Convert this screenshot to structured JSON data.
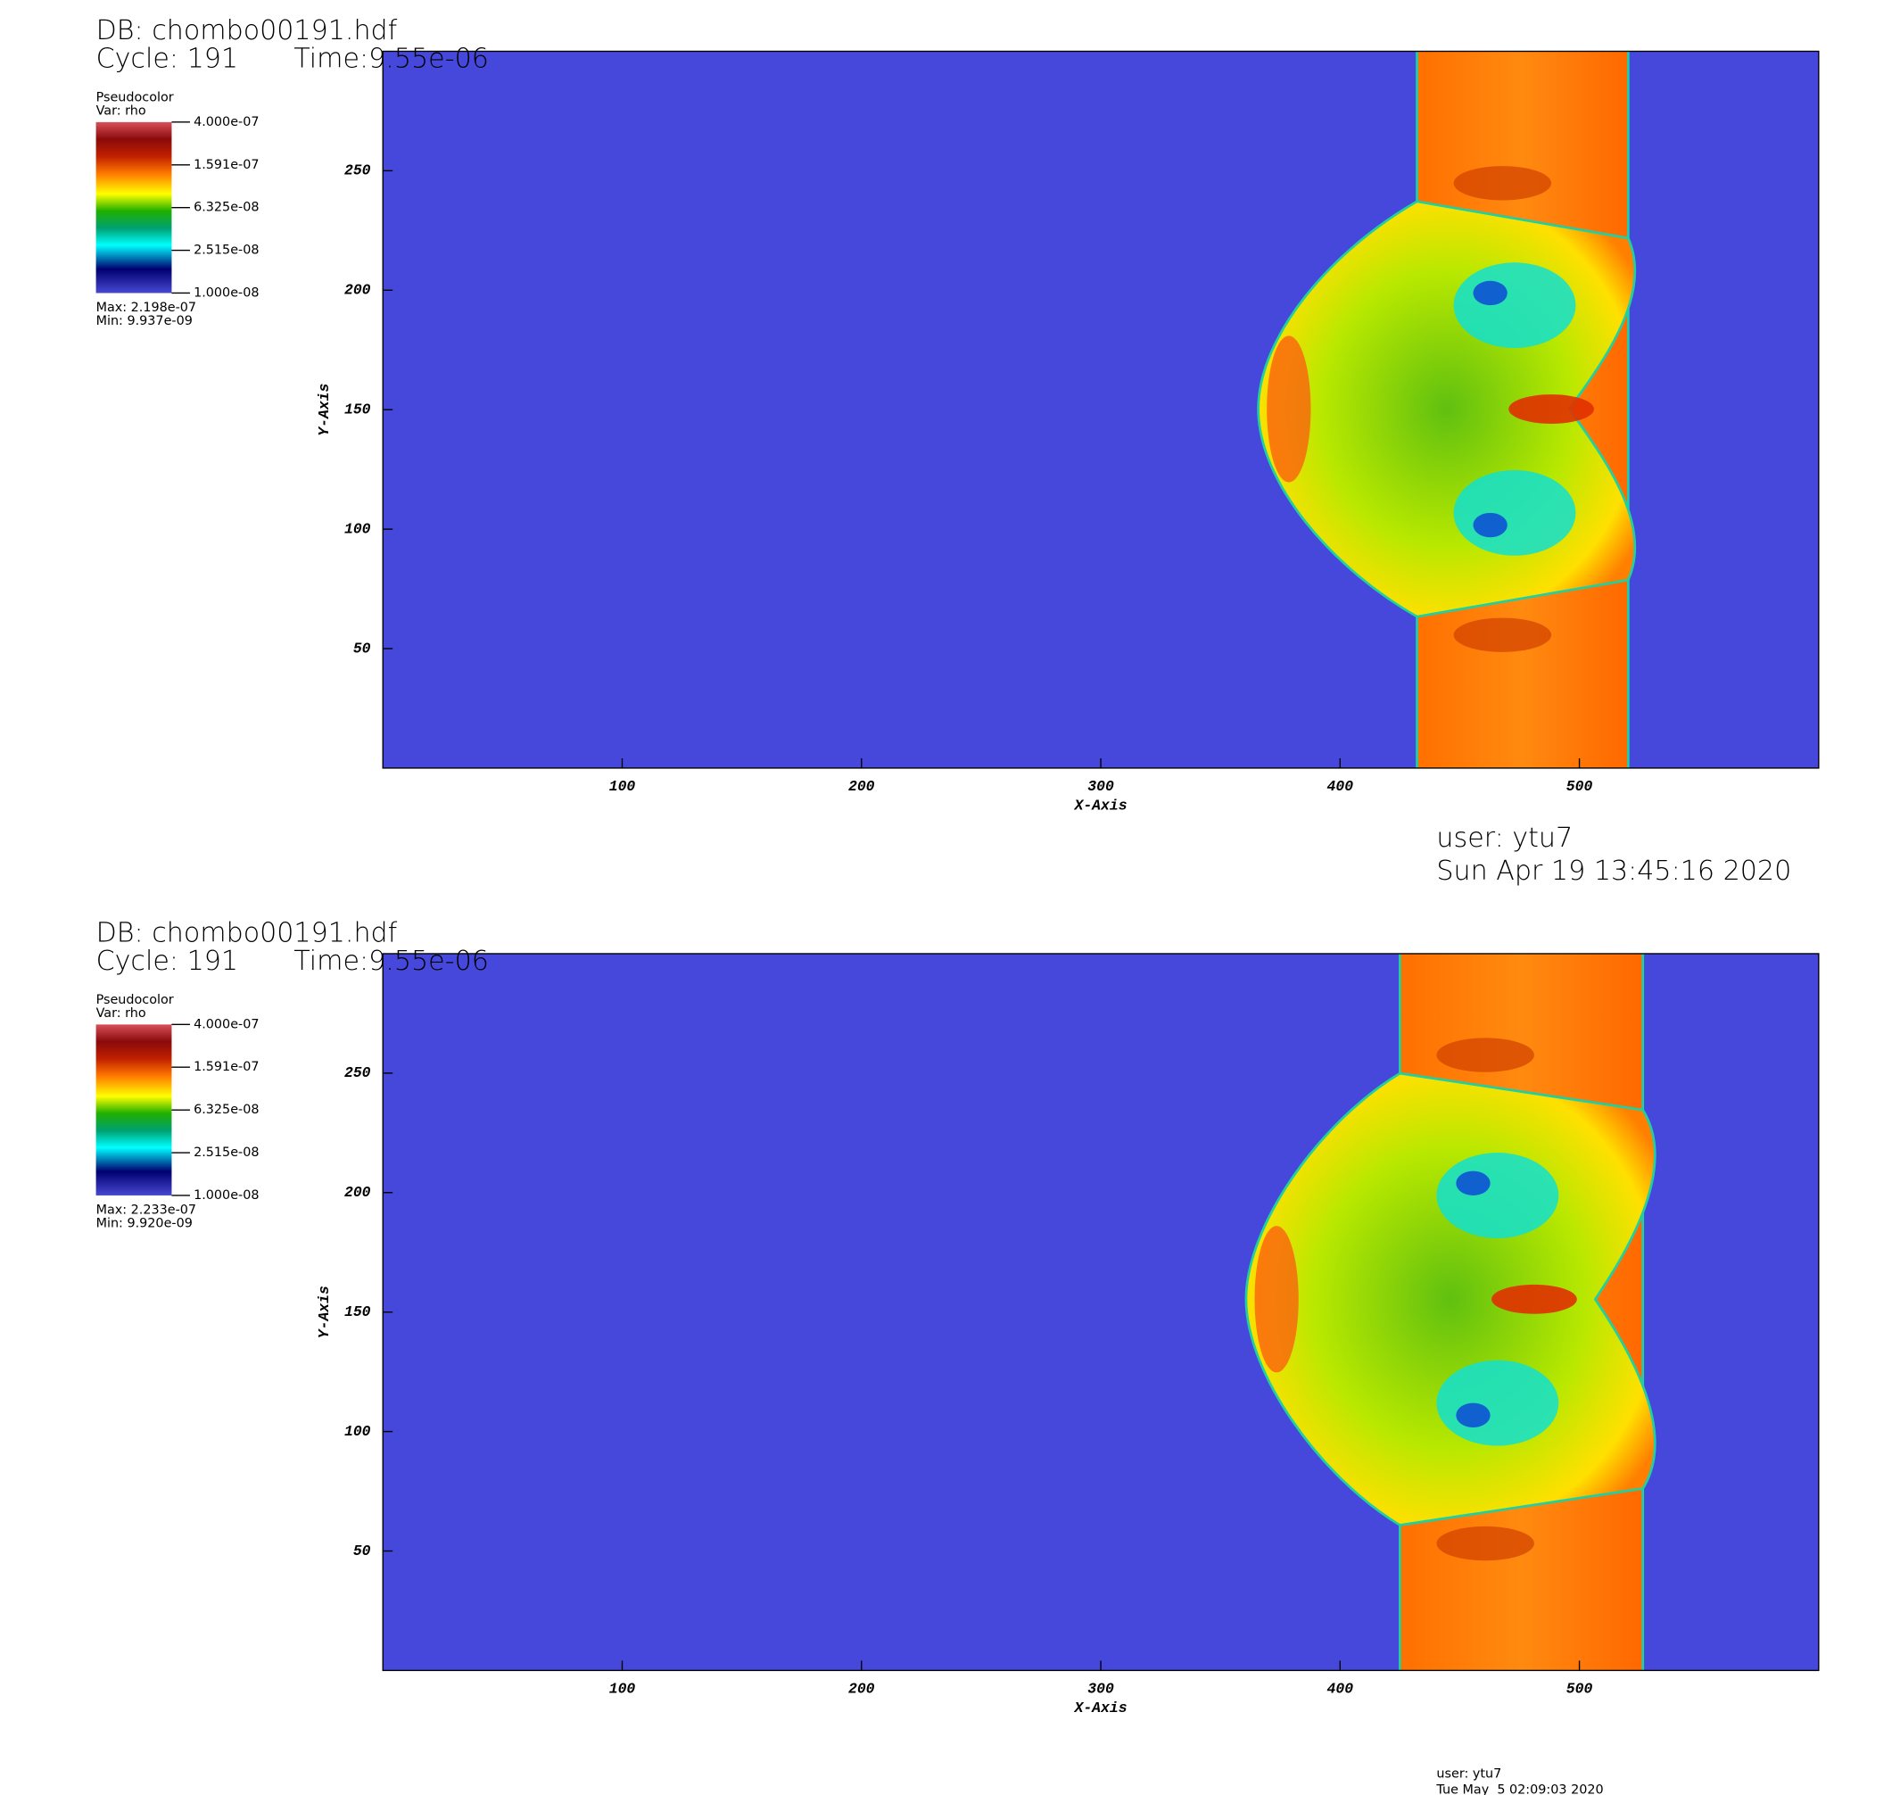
{
  "chart_data": [
    {
      "type": "pseudocolor",
      "db": "DB: chombo00191.hdf",
      "cycle": "Cycle: 191",
      "time": "Time:9.55e-06",
      "legend_title": "Pseudocolor",
      "variable": "Var: rho",
      "max": "Max:  2.198e-07",
      "min": "Min:  9.937e-09",
      "xlabel": "X-Axis",
      "ylabel": "Y-Axis",
      "xlim": [
        0,
        600
      ],
      "ylim": [
        0,
        300
      ],
      "xticks": [
        100,
        200,
        300,
        400,
        500
      ],
      "yticks": [
        50,
        100,
        150,
        200,
        250
      ],
      "colorbar": {
        "log_scale": true,
        "lim": [
          1e-08,
          4e-07
        ],
        "ticks": [
          {
            "value": 4e-07,
            "label": "4.000e-07"
          },
          {
            "value": 1.591e-07,
            "label": "1.591e-07"
          },
          {
            "value": 6.325e-08,
            "label": "6.325e-08"
          },
          {
            "value": 2.515e-08,
            "label": "2.515e-08"
          },
          {
            "value": 1e-08,
            "label": "1.000e-08"
          }
        ]
      },
      "background_color": "#4548da",
      "user": "user: ytu7",
      "date": "Sun Apr 19 13:45:16 2020"
    },
    {
      "type": "pseudocolor",
      "db": "DB: chombo00191.hdf",
      "cycle": "Cycle: 191",
      "time": "Time:9.55e-06",
      "legend_title": "Pseudocolor",
      "variable": "Var: rho",
      "max": "Max:  2.233e-07",
      "min": "Min:  9.920e-09",
      "xlabel": "X-Axis",
      "ylabel": "Y-Axis",
      "xlim": [
        0,
        600
      ],
      "ylim": [
        0,
        300
      ],
      "xticks": [
        100,
        200,
        300,
        400,
        500
      ],
      "yticks": [
        50,
        100,
        150,
        200,
        250
      ],
      "colorbar": {
        "log_scale": true,
        "lim": [
          1e-08,
          4e-07
        ],
        "ticks": [
          {
            "value": 4e-07,
            "label": "4.000e-07"
          },
          {
            "value": 1.591e-07,
            "label": "1.591e-07"
          },
          {
            "value": 6.325e-08,
            "label": "6.325e-08"
          },
          {
            "value": 2.515e-08,
            "label": "2.515e-08"
          },
          {
            "value": 1e-08,
            "label": "1.000e-08"
          }
        ]
      },
      "background_color": "#4548da",
      "user": "user: ytu7",
      "date": "Tue May  5 02:09:03 2020"
    }
  ]
}
